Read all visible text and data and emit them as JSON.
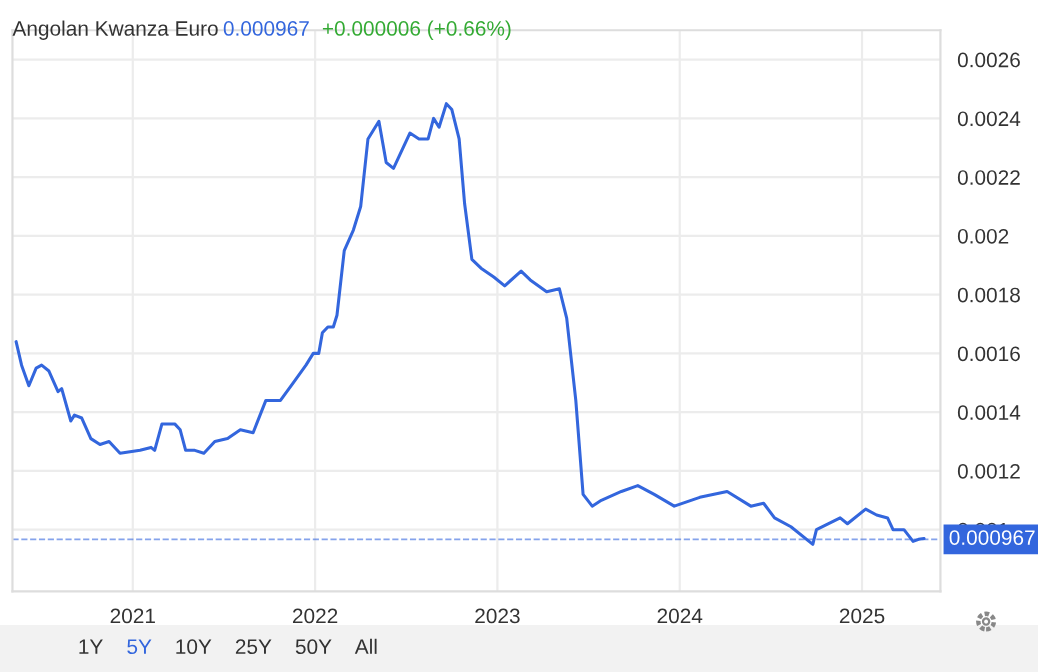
{
  "chart_data": {
    "type": "line",
    "title": "Angolan Kwanza Euro",
    "annotations": [
      "0.000967",
      "+0.000006 (+0.66%)",
      "1Y",
      "5Y",
      "10Y",
      "25Y",
      "50Y",
      "All"
    ],
    "series": [
      {
        "color": "#3366dd",
        "x": [
          2020.36,
          2020.39,
          2020.43,
          2020.47,
          2020.5,
          2020.54,
          2020.59,
          2020.61,
          2020.66,
          2020.68,
          2020.72,
          2020.77,
          2020.82,
          2020.87,
          2020.93,
          2021.04,
          2021.1,
          2021.12,
          2021.16,
          2021.23,
          2021.26,
          2021.29,
          2021.34,
          2021.39,
          2021.45,
          2021.52,
          2021.59,
          2021.66,
          2021.73,
          2021.81,
          2021.88,
          2021.95,
          2021.99,
          2022.02,
          2022.04,
          2022.07,
          2022.1,
          2022.12,
          2022.16,
          2022.21,
          2022.25,
          2022.29,
          2022.35,
          2022.39,
          2022.43,
          2022.46,
          2022.52,
          2022.57,
          2022.62,
          2022.65,
          2022.68,
          2022.72,
          2022.75,
          2022.79,
          2022.82,
          2022.86,
          2022.91,
          2022.98,
          2023.04,
          2023.13,
          2023.18,
          2023.27,
          2023.34,
          2023.38,
          2023.43,
          2023.47,
          2023.52,
          2023.57,
          2023.68,
          2023.77,
          2023.86,
          2023.97,
          2024.11,
          2024.26,
          2024.39,
          2024.46,
          2024.52,
          2024.61,
          2024.73,
          2024.75,
          2024.88,
          2024.92,
          2025.02,
          2025.08,
          2025.14,
          2025.17,
          2025.23,
          2025.28,
          2025.31,
          2025.34
        ],
        "values": [
          0.00164,
          0.00156,
          0.00149,
          0.00155,
          0.00156,
          0.00154,
          0.00147,
          0.00148,
          0.00137,
          0.00139,
          0.00138,
          0.00131,
          0.00129,
          0.0013,
          0.00126,
          0.00127,
          0.00128,
          0.00127,
          0.00136,
          0.00136,
          0.00134,
          0.00127,
          0.00127,
          0.00126,
          0.0013,
          0.00131,
          0.00134,
          0.00133,
          0.00144,
          0.00144,
          0.0015,
          0.00156,
          0.0016,
          0.0016,
          0.00167,
          0.00169,
          0.00169,
          0.00173,
          0.00195,
          0.00202,
          0.0021,
          0.00233,
          0.00239,
          0.00225,
          0.00223,
          0.00227,
          0.00235,
          0.00233,
          0.00233,
          0.0024,
          0.00237,
          0.00245,
          0.00243,
          0.00233,
          0.00211,
          0.00192,
          0.00189,
          0.00186,
          0.00183,
          0.00188,
          0.00185,
          0.00181,
          0.00182,
          0.00172,
          0.00144,
          0.00112,
          0.00108,
          0.0011,
          0.00113,
          0.00115,
          0.00112,
          0.00108,
          0.00111,
          0.00113,
          0.00108,
          0.00109,
          0.00104,
          0.00101,
          0.00095,
          0.001,
          0.00104,
          0.00102,
          0.00107,
          0.00105,
          0.00104,
          0.001,
          0.001,
          0.00096,
          0.000967,
          0.00097
        ]
      }
    ],
    "xlim": [
      2020.34,
      2025.43
    ],
    "ylim": [
      0.00079,
      0.0027
    ],
    "xticks": [
      2021,
      2022,
      2023,
      2024,
      2025
    ],
    "yticks": [
      0.001,
      0.0012,
      0.0014,
      0.0016,
      0.0018,
      0.002,
      0.0022,
      0.0024,
      0.0026
    ],
    "ref_lines": [
      {
        "axis": "y",
        "value": 0.000967,
        "label": "0.000967",
        "color": "#3366dd",
        "line_style": "dashed"
      }
    ],
    "grid": true,
    "line_style": "solid"
  }
}
